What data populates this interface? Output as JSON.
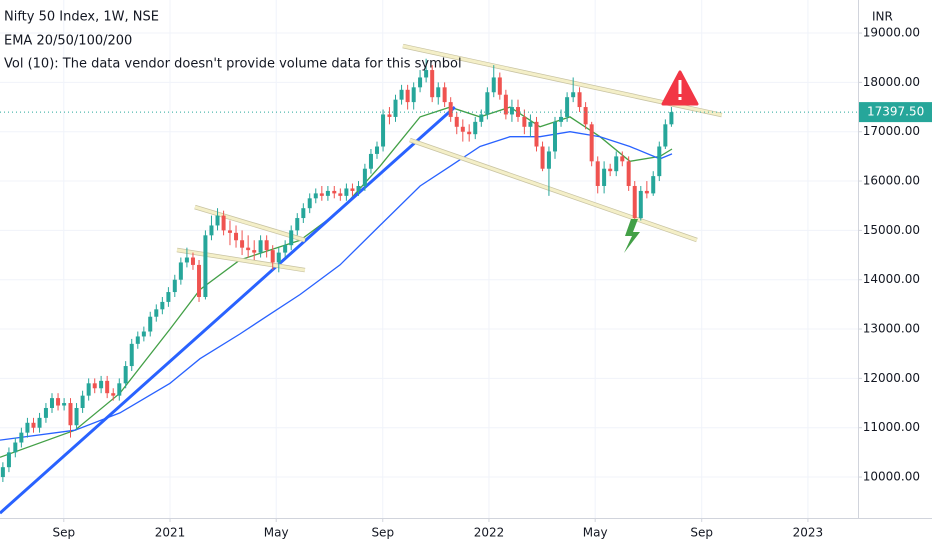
{
  "chart_data": {
    "type": "candlestick",
    "title": "Nifty 50 Index, 1W, NSE",
    "subtitle": "EMA 20/50/100/200",
    "annotations": [
      "Vol (10): The data vendor doesn't provide volume data for this symbol"
    ],
    "currency": "INR",
    "up_color": "#26a69a",
    "down_color": "#ef5350",
    "grid": true,
    "xlim": [
      2020.467,
      2023.157
    ],
    "ylim": [
      9170,
      19670
    ],
    "yticks": [
      {
        "value": 10000,
        "label": "10000.00"
      },
      {
        "value": 11000,
        "label": "11000.00"
      },
      {
        "value": 12000,
        "label": "12000.00"
      },
      {
        "value": 13000,
        "label": "13000.00"
      },
      {
        "value": 14000,
        "label": "14000.00"
      },
      {
        "value": 15000,
        "label": "15000.00"
      },
      {
        "value": 16000,
        "label": "16000.00"
      },
      {
        "value": 17000,
        "label": "17000.00"
      },
      {
        "value": 18000,
        "label": "18000.00"
      },
      {
        "value": 19000,
        "label": "19000.00"
      }
    ],
    "xticks": [
      {
        "value": 2020.667,
        "label": "Sep"
      },
      2021,
      {
        "value": 2021.333,
        "label": "May"
      },
      {
        "value": 2021.667,
        "label": "Sep"
      },
      2022,
      {
        "value": 2022.333,
        "label": "May"
      },
      {
        "value": 2022.667,
        "label": "Sep"
      },
      2023
    ],
    "last_price": {
      "value": 17397.5,
      "label": "17397.50",
      "color": "#26a69a"
    },
    "x": [
      2020.476,
      2020.495,
      2020.515,
      2020.534,
      2020.553,
      2020.572,
      2020.591,
      2020.611,
      2020.63,
      2020.649,
      2020.668,
      2020.688,
      2020.707,
      2020.726,
      2020.745,
      2020.764,
      2020.784,
      2020.803,
      2020.822,
      2020.841,
      2020.861,
      2020.88,
      2020.899,
      2020.918,
      2020.938,
      2020.957,
      2020.976,
      2020.995,
      2021.015,
      2021.034,
      2021.053,
      2021.072,
      2021.091,
      2021.111,
      2021.13,
      2021.149,
      2021.168,
      2021.188,
      2021.207,
      2021.226,
      2021.245,
      2021.264,
      2021.284,
      2021.303,
      2021.322,
      2021.341,
      2021.361,
      2021.38,
      2021.399,
      2021.418,
      2021.438,
      2021.457,
      2021.476,
      2021.495,
      2021.515,
      2021.534,
      2021.553,
      2021.572,
      2021.591,
      2021.611,
      2021.63,
      2021.649,
      2021.668,
      2021.688,
      2021.707,
      2021.726,
      2021.745,
      2021.764,
      2021.784,
      2021.803,
      2021.822,
      2021.841,
      2021.861,
      2021.88,
      2021.899,
      2021.918,
      2021.938,
      2021.957,
      2021.976,
      2021.995,
      2022.015,
      2022.034,
      2022.053,
      2022.072,
      2022.091,
      2022.111,
      2022.13,
      2022.149,
      2022.168,
      2022.188,
      2022.207,
      2022.226,
      2022.245,
      2022.264,
      2022.284,
      2022.303,
      2022.322,
      2022.341,
      2022.361,
      2022.38,
      2022.399,
      2022.418,
      2022.438,
      2022.457,
      2022.476,
      2022.495,
      2022.515,
      2022.534,
      2022.553,
      2022.572
    ],
    "open": [
      10000,
      10200,
      10500,
      10700,
      10900,
      11100,
      11000,
      11200,
      11400,
      11600,
      11450,
      11500,
      11050,
      11400,
      11650,
      11900,
      11800,
      11950,
      11700,
      11650,
      11900,
      12250,
      12700,
      12850,
      12950,
      13250,
      13400,
      13550,
      13750,
      14000,
      14350,
      14450,
      14300,
      13650,
      14900,
      15100,
      15300,
      15000,
      14950,
      14800,
      14650,
      14600,
      14550,
      14800,
      14600,
      14350,
      14550,
      14700,
      15000,
      15250,
      15450,
      15650,
      15750,
      15700,
      15800,
      15750,
      15700,
      15850,
      15800,
      15900,
      16250,
      16550,
      16700,
      17350,
      17300,
      17650,
      17850,
      17600,
      17900,
      18100,
      18250,
      17700,
      17900,
      17600,
      17300,
      17100,
      17000,
      16950,
      17200,
      17350,
      17800,
      18100,
      17750,
      17350,
      17500,
      17300,
      17100,
      17200,
      16700,
      16250,
      16600,
      17200,
      17300,
      17700,
      17800,
      17500,
      17150,
      16400,
      15900,
      16250,
      16200,
      16500,
      16400,
      15900,
      15250,
      15800,
      15750,
      16100,
      16700,
      17150
    ],
    "high": [
      10300,
      10600,
      10800,
      11000,
      11200,
      11200,
      11300,
      11500,
      11700,
      11700,
      11600,
      11600,
      11500,
      11750,
      12000,
      12000,
      12050,
      12050,
      11800,
      12000,
      12350,
      12800,
      12950,
      13050,
      13350,
      13500,
      13650,
      13850,
      14100,
      14450,
      14650,
      14550,
      14400,
      15000,
      15300,
      15450,
      15400,
      15200,
      15100,
      15000,
      14900,
      14800,
      14900,
      14900,
      14700,
      14650,
      14800,
      15100,
      15350,
      15550,
      15750,
      15850,
      15900,
      15900,
      15900,
      15850,
      15950,
      15950,
      16000,
      16350,
      16650,
      16800,
      17450,
      17500,
      17750,
      17950,
      17950,
      18000,
      18250,
      18480,
      18350,
      18000,
      18000,
      17700,
      17400,
      17250,
      17150,
      17300,
      17450,
      17900,
      18350,
      18200,
      17850,
      17650,
      17650,
      17450,
      17350,
      17300,
      16800,
      16700,
      17300,
      17450,
      17800,
      18100,
      17900,
      17600,
      17200,
      16500,
      16400,
      16350,
      16600,
      16600,
      16500,
      16000,
      15900,
      16000,
      16200,
      16800,
      17250,
      17500
    ],
    "low": [
      9900,
      10100,
      10400,
      10600,
      10800,
      10900,
      10900,
      11100,
      11300,
      11350,
      11350,
      10800,
      10950,
      11300,
      11550,
      11700,
      11700,
      11600,
      11550,
      11550,
      11800,
      12150,
      12600,
      12750,
      12850,
      13150,
      13300,
      13450,
      13650,
      13900,
      14250,
      14200,
      13550,
      13600,
      14800,
      15000,
      14900,
      14700,
      14650,
      14500,
      14450,
      14400,
      14450,
      14450,
      14200,
      14150,
      14450,
      14600,
      14900,
      15150,
      15350,
      15550,
      15600,
      15600,
      15650,
      15600,
      15600,
      15700,
      15700,
      15800,
      16150,
      16450,
      16600,
      17150,
      17200,
      17550,
      17450,
      17450,
      17800,
      18000,
      17600,
      17550,
      17500,
      17200,
      16950,
      16800,
      16800,
      16850,
      17100,
      17250,
      17700,
      17650,
      17250,
      17200,
      17200,
      16950,
      16900,
      16600,
      16200,
      15700,
      16450,
      17100,
      17200,
      17600,
      17400,
      17050,
      16300,
      15750,
      15750,
      16100,
      16100,
      16300,
      15800,
      15200,
      15200,
      15650,
      15700,
      16000,
      16650,
      17100
    ],
    "close": [
      10200,
      10500,
      10700,
      10900,
      11100,
      11000,
      11200,
      11400,
      11600,
      11450,
      11500,
      11050,
      11400,
      11650,
      11900,
      11800,
      11950,
      11700,
      11650,
      11900,
      12250,
      12700,
      12850,
      12950,
      13250,
      13400,
      13550,
      13750,
      14000,
      14350,
      14450,
      14300,
      13650,
      14900,
      15100,
      15300,
      15000,
      14950,
      14800,
      14650,
      14600,
      14550,
      14800,
      14600,
      14350,
      14550,
      14700,
      15000,
      15250,
      15450,
      15650,
      15750,
      15700,
      15800,
      15750,
      15700,
      15850,
      15800,
      15900,
      16250,
      16550,
      16700,
      17350,
      17300,
      17650,
      17850,
      17600,
      17900,
      18100,
      18250,
      17700,
      17900,
      17600,
      17300,
      17100,
      17000,
      16950,
      17200,
      17350,
      17800,
      18100,
      17750,
      17350,
      17500,
      17300,
      17100,
      17200,
      16700,
      16250,
      16600,
      17200,
      17300,
      17700,
      17800,
      17500,
      17150,
      16400,
      15900,
      16250,
      16200,
      16500,
      16400,
      15900,
      15250,
      15800,
      15750,
      16100,
      16700,
      17150,
      17397.5
    ],
    "series": [
      {
        "color": "#43a047",
        "x": [
          2020.467,
          2020.702,
          2020.843,
          2021.0,
          2021.094,
          2021.219,
          2021.313,
          2021.408,
          2021.533,
          2021.658,
          2021.784,
          2021.878,
          2021.972,
          2022.066,
          2022.16,
          2022.254,
          2022.348,
          2022.442,
          2022.536,
          2022.574
        ],
        "values": [
          10400,
          10950,
          11700,
          13000,
          13800,
          14400,
          14600,
          14800,
          15400,
          16300,
          17300,
          17500,
          17300,
          17500,
          17100,
          17300,
          16900,
          16400,
          16500,
          16650
        ]
      },
      {
        "color": "#2962ff",
        "x": [
          2020.467,
          2020.702,
          2020.843,
          2021.0,
          2021.094,
          2021.219,
          2021.313,
          2021.408,
          2021.533,
          2021.658,
          2021.784,
          2021.878,
          2021.972,
          2022.066,
          2022.16,
          2022.254,
          2022.348,
          2022.442,
          2022.536,
          2022.574
        ],
        "values": [
          10750,
          10950,
          11300,
          11900,
          12400,
          12900,
          13300,
          13700,
          14300,
          15100,
          15900,
          16300,
          16700,
          16900,
          16900,
          17000,
          16900,
          16700,
          16450,
          16550
        ]
      }
    ],
    "trend_lines": [
      {
        "color": "#2962ff",
        "width": 3,
        "x": [
          2020.467,
          2021.893
        ],
        "values": [
          9270,
          17500
        ]
      },
      {
        "color": "#f4efc8",
        "width": 3,
        "x": [
          2021.078,
          2021.423
        ],
        "values": [
          15473,
          14804
        ]
      },
      {
        "color": "#f4efc8",
        "width": 3,
        "x": [
          2021.022,
          2021.423
        ],
        "values": [
          14602,
          14196
        ]
      },
      {
        "color": "#f4efc8",
        "width": 3,
        "x": [
          2021.73,
          2022.73
        ],
        "values": [
          18737,
          17338
        ]
      },
      {
        "color": "#f4efc8",
        "width": 3,
        "x": [
          2021.752,
          2022.652
        ],
        "values": [
          16832,
          14804
        ]
      }
    ]
  }
}
